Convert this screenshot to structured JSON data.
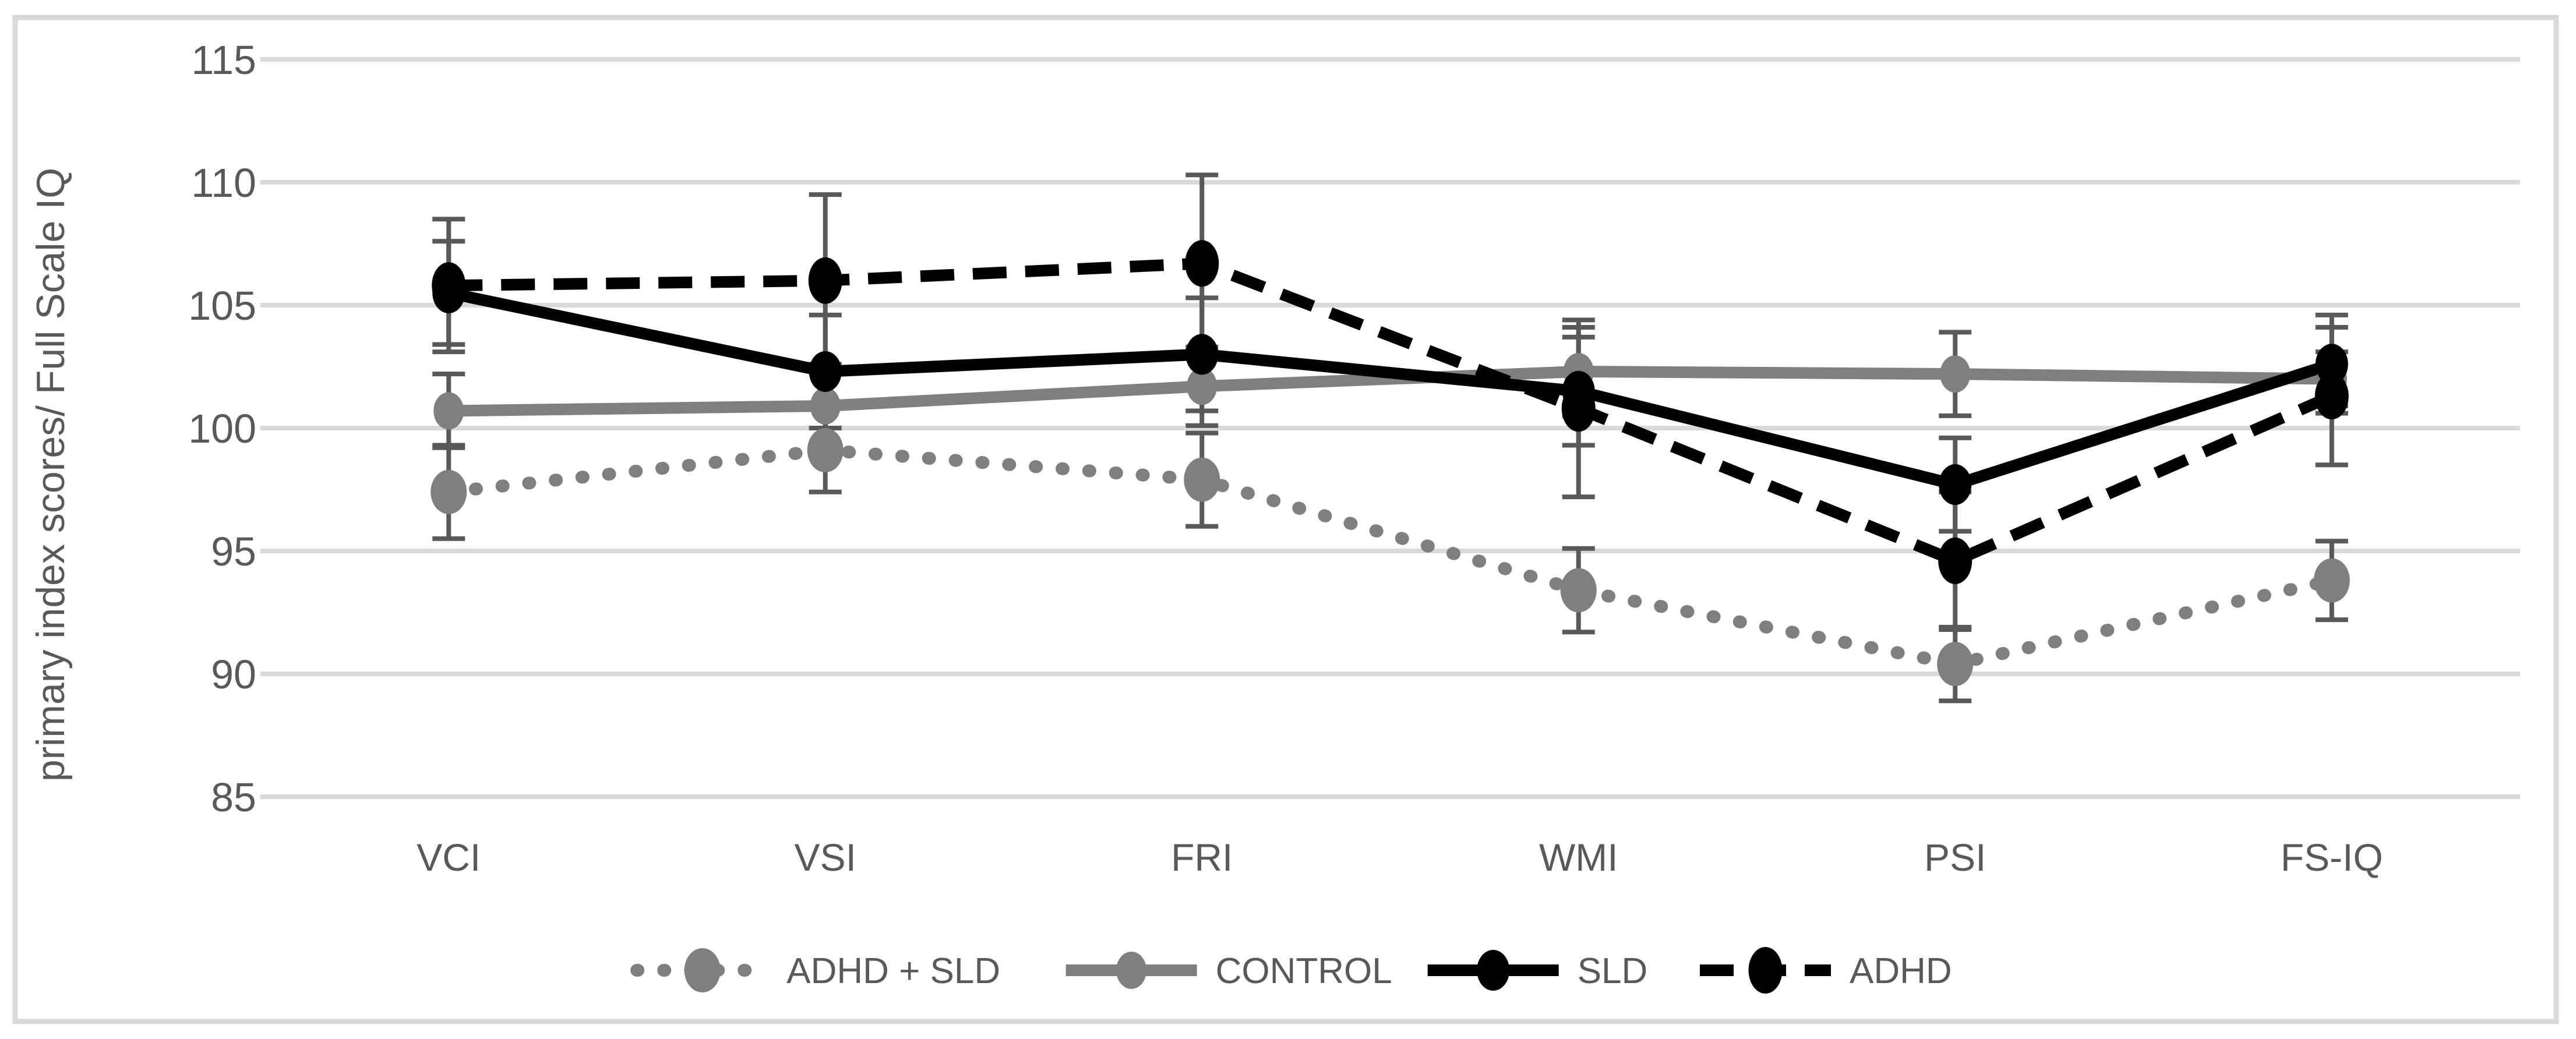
{
  "chart_data": {
    "type": "line",
    "title": "",
    "ylabel": "primary index scores/ Full Scale IQ",
    "xlabel": "",
    "categories": [
      "VCI",
      "VSI",
      "FRI",
      "WMI",
      "PSI",
      "FS-IQ"
    ],
    "y_axis": {
      "min": 85,
      "max": 115,
      "step": 5,
      "ticks": [
        115,
        110,
        105,
        100,
        95,
        90,
        85
      ]
    },
    "grid": true,
    "legend_position": "bottom",
    "series": [
      {
        "name": "ADHD + SLD",
        "values": [
          97.4,
          99.1,
          97.9,
          93.4,
          90.4,
          93.8
        ],
        "errors": [
          1.9,
          1.7,
          1.9,
          1.7,
          1.5,
          1.6
        ],
        "color": "#7F7F7F",
        "line_style": "dotted",
        "marker": "circle"
      },
      {
        "name": "CONTROL",
        "values": [
          100.7,
          100.9,
          101.7,
          102.3,
          102.2,
          102.0
        ],
        "errors": [
          1.5,
          1.7,
          1.6,
          1.8,
          1.7,
          1.1
        ],
        "color": "#7F7F7F",
        "line_style": "solid",
        "marker": "circle"
      },
      {
        "name": "SLD",
        "values": [
          105.5,
          102.3,
          103.0,
          101.5,
          97.7,
          102.6
        ],
        "errors": [
          2.1,
          2.3,
          2.3,
          2.2,
          1.9,
          2.0
        ],
        "color": "#000000",
        "line_style": "solid",
        "marker": "circle"
      },
      {
        "name": "ADHD",
        "values": [
          105.8,
          106.0,
          106.7,
          100.8,
          94.6,
          101.3
        ],
        "errors": [
          2.7,
          3.5,
          3.6,
          3.6,
          2.8,
          2.8
        ],
        "color": "#000000",
        "line_style": "dashed",
        "marker": "circle"
      }
    ],
    "colors": {
      "gridline": "#D9D9D9",
      "frame": "#D9D9D9",
      "error_bar": "#595959",
      "axis_text": "#595959",
      "background": "#FFFFFF",
      "gray_series": "#7F7F7F",
      "black_series": "#000000"
    }
  }
}
